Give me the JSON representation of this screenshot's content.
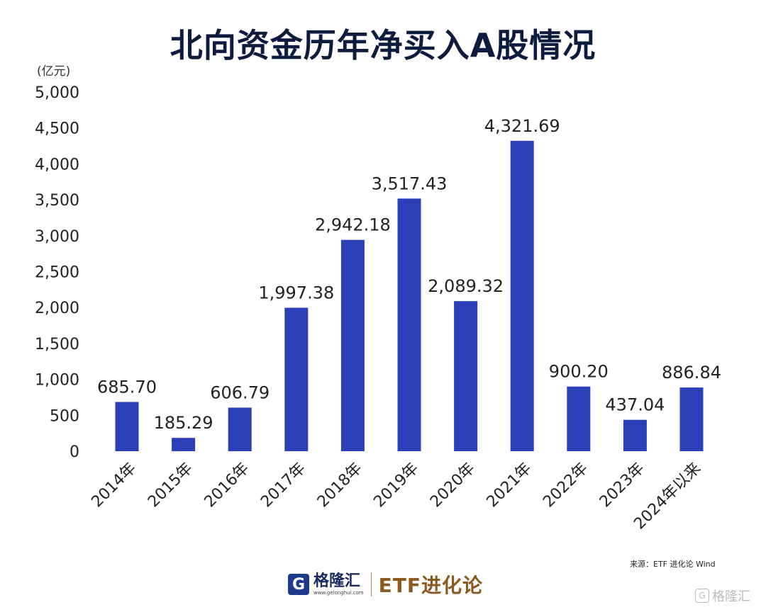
{
  "title": "北向资金历年净买入A股情况",
  "source_text": "来源：ETF 进化论   Wind",
  "footer": {
    "logo_glyph": "G",
    "logo_name": "格隆汇",
    "logo_url": "www.gelonghui.com",
    "brand": "ETF进化论"
  },
  "watermark": {
    "glyph": "G",
    "text": "格隆汇"
  },
  "colors": {
    "bar": "#2b3fb8",
    "title": "#0d1b3e",
    "brand": "#8a5a22"
  },
  "chart_data": {
    "type": "bar",
    "title": "北向资金历年净买入A股情况",
    "unit": "(亿元)",
    "xlabel": "",
    "ylabel": "",
    "ylim": [
      0,
      5000
    ],
    "yticks": [
      "5,000",
      "4,500",
      "4,000",
      "3,500",
      "3,000",
      "2,500",
      "2,000",
      "1,500",
      "1,000",
      "500",
      "0"
    ],
    "categories": [
      "2014年",
      "2015年",
      "2016年",
      "2017年",
      "2018年",
      "2019年",
      "2020年",
      "2021年",
      "2022年",
      "2023年",
      "2024年以来"
    ],
    "values": [
      685.7,
      185.29,
      606.79,
      1997.38,
      2942.18,
      3517.43,
      2089.32,
      4321.69,
      900.2,
      437.04,
      886.84
    ],
    "labels": [
      "685.70",
      "185.29",
      "606.79",
      "1,997.38",
      "2,942.18",
      "3,517.43",
      "2,089.32",
      "4,321.69",
      "900.20",
      "437.04",
      "886.84"
    ],
    "grid": false,
    "legend": "none"
  }
}
